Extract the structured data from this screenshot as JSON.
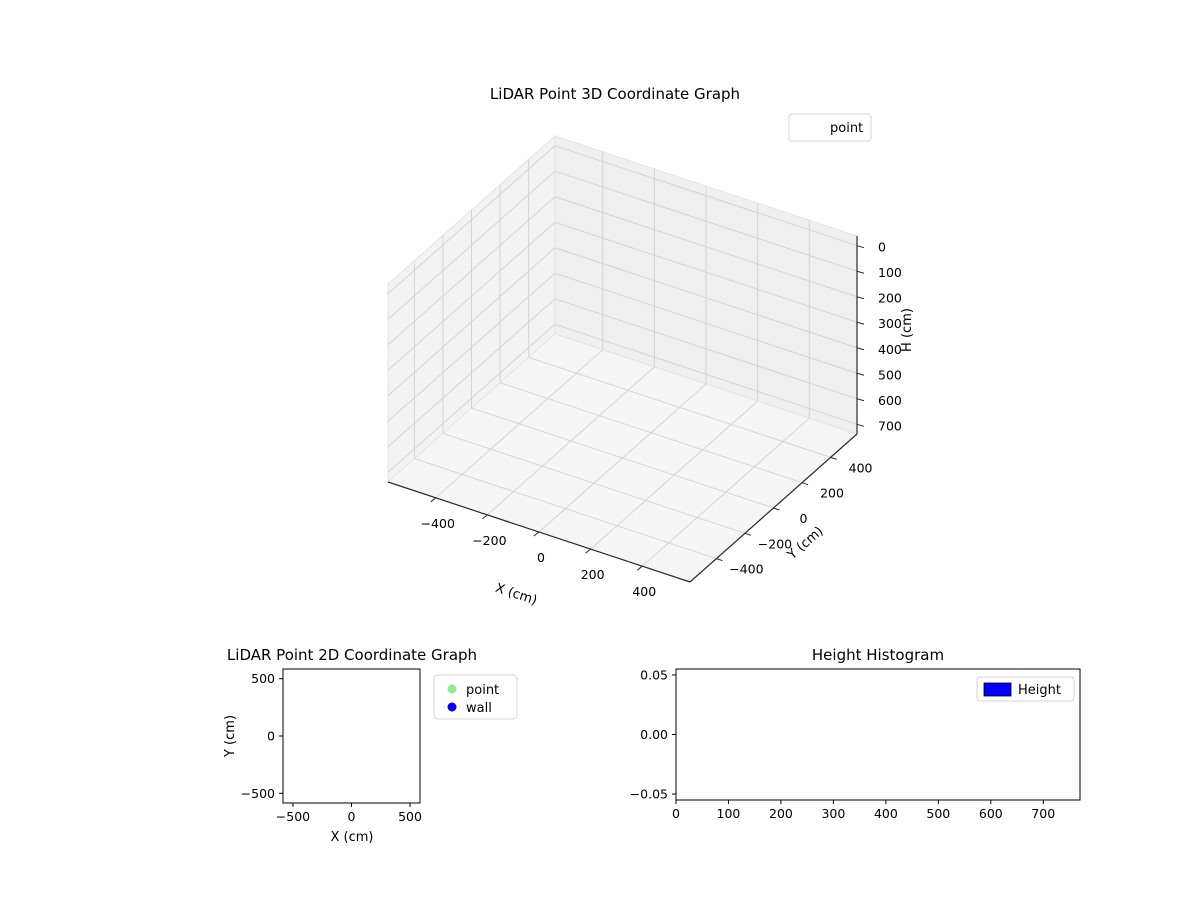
{
  "chart_data": [
    {
      "type": "scatter3d",
      "title": "LiDAR Point 3D Coordinate Graph",
      "xlabel": "X (cm)",
      "ylabel": "Y (cm)",
      "zlabel": "H (cm)",
      "xlim": [
        -585,
        585
      ],
      "ylim": [
        -585,
        585
      ],
      "zlim": [
        -38,
        738
      ],
      "z_axis_inverted": true,
      "grid": true,
      "xticks": [
        -400,
        -200,
        0,
        200,
        400
      ],
      "xtick_labels": [
        "−400",
        "−200",
        "0",
        "200",
        "400"
      ],
      "yticks": [
        -400,
        -200,
        0,
        200,
        400
      ],
      "ytick_labels": [
        "−400",
        "−200",
        "0",
        "200",
        "400"
      ],
      "zticks": [
        0,
        100,
        200,
        300,
        400,
        500,
        600,
        700
      ],
      "ztick_labels": [
        "0",
        "100",
        "200",
        "300",
        "400",
        "500",
        "600",
        "700"
      ],
      "series": [
        {
          "name": "point",
          "points": []
        }
      ],
      "legend": {
        "position": "upper right",
        "items": [
          {
            "label": "point"
          }
        ]
      }
    },
    {
      "type": "scatter",
      "title": "LiDAR Point 2D Coordinate Graph",
      "xlabel": "X (cm)",
      "ylabel": "Y (cm)",
      "xlim": [
        -585,
        585
      ],
      "ylim": [
        -585,
        585
      ],
      "grid": false,
      "xticks": [
        -500,
        0,
        500
      ],
      "xtick_labels": [
        "−500",
        "0",
        "500"
      ],
      "yticks": [
        -500,
        0,
        500
      ],
      "ytick_labels": [
        "−500",
        "0",
        "500"
      ],
      "series": [
        {
          "name": "point",
          "color": "#90ee90",
          "points": []
        },
        {
          "name": "wall",
          "color": "#0000ff",
          "points": []
        }
      ],
      "legend": {
        "position": "outside upper right",
        "items": [
          {
            "label": "point",
            "color": "#90ee90"
          },
          {
            "label": "wall",
            "color": "#0000ff"
          }
        ]
      }
    },
    {
      "type": "histogram",
      "title": "Height Histogram",
      "xlabel": "",
      "ylabel": "",
      "xlim": [
        0,
        770
      ],
      "ylim": [
        -0.055,
        0.055
      ],
      "grid": false,
      "xticks": [
        0,
        100,
        200,
        300,
        400,
        500,
        600,
        700
      ],
      "xtick_labels": [
        "0",
        "100",
        "200",
        "300",
        "400",
        "500",
        "600",
        "700"
      ],
      "yticks": [
        -0.05,
        0,
        0.05
      ],
      "ytick_labels": [
        "−0.05",
        "0.00",
        "0.05"
      ],
      "series": [
        {
          "name": "Height",
          "color": "#0000ff",
          "values": []
        }
      ],
      "legend": {
        "position": "upper right",
        "items": [
          {
            "label": "Height",
            "color": "#0000ff"
          }
        ]
      }
    }
  ]
}
